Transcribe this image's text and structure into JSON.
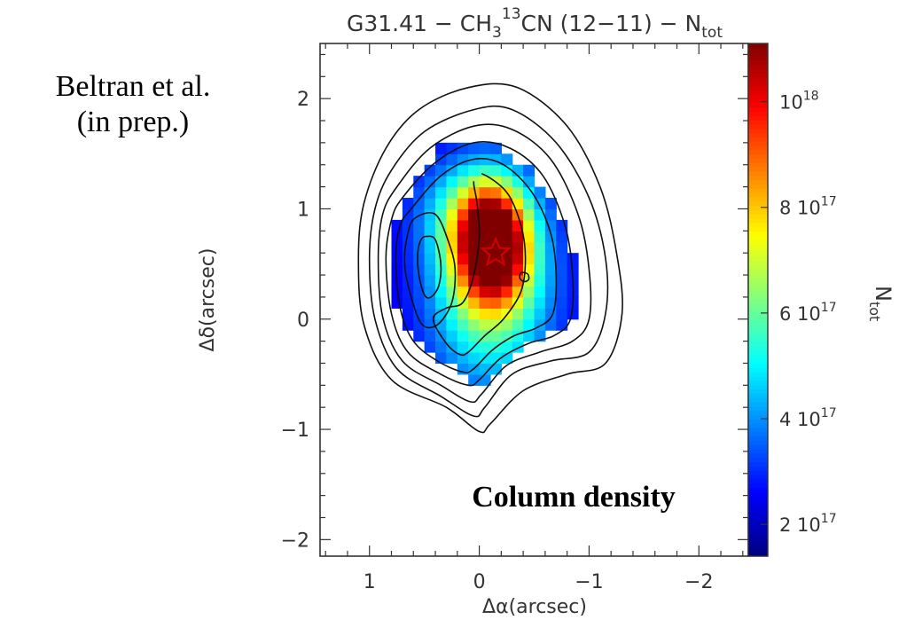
{
  "credit": {
    "line1": "Beltran et al.",
    "line2": "(in prep.)"
  },
  "chart_data": {
    "type": "heatmap",
    "title": {
      "prefix": "G31.41 − CH",
      "sub1": "3",
      "sup": "13",
      "mid": "CN (12−11) − N",
      "sub2": "tot"
    },
    "xlabel": "Δα(arcsec)",
    "ylabel": "Δδ(arcsec)",
    "xlim": [
      1.45,
      -2.45
    ],
    "ylim": [
      -2.15,
      2.5
    ],
    "x_ticks": [
      {
        "value": 1,
        "label": "1"
      },
      {
        "value": 0,
        "label": "0"
      },
      {
        "value": -1,
        "label": "−1"
      },
      {
        "value": -2,
        "label": "−2"
      }
    ],
    "y_ticks": [
      {
        "value": 2,
        "label": "2"
      },
      {
        "value": 1,
        "label": "1"
      },
      {
        "value": 0,
        "label": "0"
      },
      {
        "value": -1,
        "label": "−1"
      },
      {
        "value": -2,
        "label": "−2"
      }
    ],
    "colorbar": {
      "label_main": "N",
      "label_sub": "tot",
      "range": [
        1.4e+17,
        1.11e+18
      ],
      "ticks": [
        {
          "value": 1e+18,
          "mantissa": "",
          "exponent": "18"
        },
        {
          "value": 8e+17,
          "mantissa": "8",
          "exponent": "17"
        },
        {
          "value": 6e+17,
          "mantissa": "6",
          "exponent": "17"
        },
        {
          "value": 4e+17,
          "mantissa": "4",
          "exponent": "17"
        },
        {
          "value": 2e+17,
          "mantissa": "2",
          "exponent": "17"
        }
      ],
      "base": "10"
    },
    "annotation": "Column density",
    "star_position": [
      -0.15,
      0.6
    ],
    "contours": [
      {
        "name": "level1",
        "points": [
          [
            0.85,
            1.55
          ],
          [
            0.55,
            1.9
          ],
          [
            0.1,
            2.1
          ],
          [
            -0.35,
            2.1
          ],
          [
            -0.8,
            1.75
          ],
          [
            -1.1,
            1.2
          ],
          [
            -1.25,
            0.6
          ],
          [
            -1.3,
            0.05
          ],
          [
            -1.15,
            -0.4
          ],
          [
            -0.8,
            -0.5
          ],
          [
            -0.4,
            -0.65
          ],
          [
            -0.1,
            -0.95
          ],
          [
            0,
            -1.02
          ],
          [
            0.3,
            -0.8
          ],
          [
            0.8,
            -0.55
          ],
          [
            1.05,
            -0.05
          ],
          [
            1.1,
            0.55
          ],
          [
            1.05,
            1.05
          ]
        ]
      },
      {
        "name": "level2",
        "points": [
          [
            0.8,
            1.35
          ],
          [
            0.5,
            1.7
          ],
          [
            0.05,
            1.9
          ],
          [
            -0.3,
            1.9
          ],
          [
            -0.7,
            1.6
          ],
          [
            -1.0,
            1.1
          ],
          [
            -1.15,
            0.55
          ],
          [
            -1.15,
            0.05
          ],
          [
            -1.0,
            -0.3
          ],
          [
            -0.65,
            -0.38
          ],
          [
            -0.3,
            -0.5
          ],
          [
            -0.05,
            -0.8
          ],
          [
            0.05,
            -0.88
          ],
          [
            0.35,
            -0.7
          ],
          [
            0.75,
            -0.45
          ],
          [
            0.95,
            0.0
          ],
          [
            1.0,
            0.55
          ],
          [
            0.95,
            1.0
          ]
        ]
      },
      {
        "name": "level3",
        "points": [
          [
            0.75,
            1.2
          ],
          [
            0.45,
            1.55
          ],
          [
            0.05,
            1.75
          ],
          [
            -0.3,
            1.72
          ],
          [
            -0.65,
            1.45
          ],
          [
            -0.9,
            0.95
          ],
          [
            -1.0,
            0.45
          ],
          [
            -1.0,
            0.0
          ],
          [
            -0.85,
            -0.2
          ],
          [
            -0.55,
            -0.3
          ],
          [
            -0.25,
            -0.42
          ],
          [
            -0.02,
            -0.68
          ],
          [
            0.08,
            -0.75
          ],
          [
            0.35,
            -0.6
          ],
          [
            0.7,
            -0.38
          ],
          [
            0.88,
            0.02
          ],
          [
            0.92,
            0.55
          ],
          [
            0.88,
            0.95
          ]
        ]
      },
      {
        "name": "level4",
        "points": [
          [
            0.7,
            1.1
          ],
          [
            0.4,
            1.42
          ],
          [
            0.05,
            1.6
          ],
          [
            -0.28,
            1.55
          ],
          [
            -0.58,
            1.3
          ],
          [
            -0.78,
            0.85
          ],
          [
            -0.85,
            0.4
          ],
          [
            -0.83,
            0.0
          ],
          [
            -0.68,
            -0.15
          ],
          [
            -0.45,
            -0.22
          ],
          [
            -0.2,
            -0.35
          ],
          [
            0.0,
            -0.55
          ],
          [
            0.1,
            -0.6
          ],
          [
            0.35,
            -0.5
          ],
          [
            0.65,
            -0.3
          ],
          [
            0.8,
            0.05
          ],
          [
            0.85,
            0.55
          ],
          [
            0.8,
            0.9
          ]
        ]
      },
      {
        "name": "level5",
        "points": [
          [
            0.62,
            1.0
          ],
          [
            0.35,
            1.3
          ],
          [
            0.05,
            1.45
          ],
          [
            -0.22,
            1.4
          ],
          [
            -0.48,
            1.15
          ],
          [
            -0.65,
            0.78
          ],
          [
            -0.7,
            0.4
          ],
          [
            -0.67,
            0.05
          ],
          [
            -0.52,
            -0.08
          ],
          [
            -0.32,
            -0.15
          ],
          [
            -0.12,
            -0.28
          ],
          [
            0.05,
            -0.45
          ],
          [
            0.15,
            -0.48
          ],
          [
            0.38,
            -0.38
          ],
          [
            0.6,
            -0.2
          ],
          [
            0.72,
            0.1
          ],
          [
            0.76,
            0.55
          ],
          [
            0.72,
            0.85
          ]
        ]
      },
      {
        "name": "level6",
        "points": [
          [
            -0.02,
            1.32
          ],
          [
            -0.25,
            1.15
          ],
          [
            -0.38,
            0.85
          ],
          [
            -0.42,
            0.55
          ],
          [
            -0.38,
            0.25
          ],
          [
            -0.22,
            0.0
          ],
          [
            -0.05,
            -0.15
          ],
          [
            0.1,
            -0.3
          ],
          [
            0.18,
            -0.32
          ],
          [
            0.3,
            -0.22
          ],
          [
            0.42,
            0.0
          ],
          [
            0.3,
            0.1
          ],
          [
            0.15,
            0.15
          ],
          [
            0.05,
            0.4
          ],
          [
            0.0,
            0.75
          ],
          [
            0.02,
            1.05
          ],
          [
            0.05,
            1.25
          ]
        ]
      },
      {
        "name": "left-inner-outer",
        "points": [
          [
            0.58,
            0.92
          ],
          [
            0.4,
            0.95
          ],
          [
            0.28,
            0.7
          ],
          [
            0.22,
            0.45
          ],
          [
            0.25,
            0.15
          ],
          [
            0.38,
            -0.05
          ],
          [
            0.52,
            -0.05
          ],
          [
            0.62,
            0.2
          ],
          [
            0.68,
            0.5
          ],
          [
            0.65,
            0.78
          ]
        ]
      },
      {
        "name": "left-inner-core",
        "points": [
          [
            0.48,
            0.75
          ],
          [
            0.4,
            0.72
          ],
          [
            0.35,
            0.5
          ],
          [
            0.37,
            0.3
          ],
          [
            0.44,
            0.2
          ],
          [
            0.5,
            0.22
          ],
          [
            0.55,
            0.4
          ],
          [
            0.56,
            0.6
          ],
          [
            0.53,
            0.72
          ]
        ]
      },
      {
        "name": "small-blob",
        "points": [
          [
            -0.38,
            0.42
          ],
          [
            -0.44,
            0.41
          ],
          [
            -0.45,
            0.36
          ],
          [
            -0.41,
            0.34
          ],
          [
            -0.37,
            0.37
          ]
        ]
      }
    ],
    "grid": false
  }
}
